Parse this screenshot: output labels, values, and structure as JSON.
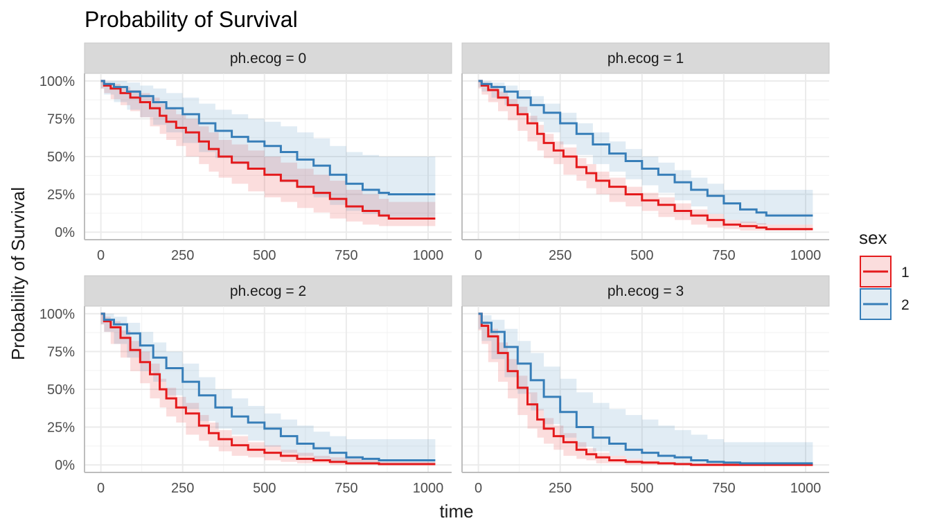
{
  "chart_data": {
    "type": "line",
    "subtype": "step (Kaplan-Meier survival curves with confidence bands)",
    "title": "Probability of Survival",
    "xlabel": "time",
    "ylabel": "Probability of Survival",
    "xlim": [
      0,
      1022
    ],
    "ylim": [
      0,
      1
    ],
    "x_ticks": [
      0,
      250,
      500,
      750,
      1000
    ],
    "x_tick_labels": [
      "0",
      "250",
      "500",
      "750",
      "1000"
    ],
    "y_ticks": [
      0,
      0.25,
      0.5,
      0.75,
      1
    ],
    "y_tick_labels": [
      "0%",
      "25%",
      "50%",
      "75%",
      "100%"
    ],
    "grid": true,
    "legend": {
      "title": "sex",
      "position": "right",
      "entries": [
        "1",
        "2"
      ]
    },
    "colors": {
      "1": "#e41a1c",
      "2": "#377eb8",
      "strip_fill": "#d9d9d9",
      "grid": "#ebebeb"
    },
    "panels": [
      {
        "label": "ph.ecog = 0",
        "series": [
          {
            "name": "1",
            "x": [
              0,
              10,
              30,
              60,
              90,
              120,
              150,
              180,
              200,
              230,
              260,
              300,
              330,
              360,
              400,
              450,
              500,
              550,
              600,
              650,
              700,
              750,
              800,
              850,
              880,
              1022
            ],
            "y": [
              1.0,
              0.97,
              0.95,
              0.92,
              0.89,
              0.86,
              0.82,
              0.77,
              0.73,
              0.69,
              0.66,
              0.6,
              0.55,
              0.5,
              0.46,
              0.42,
              0.38,
              0.34,
              0.3,
              0.26,
              0.22,
              0.17,
              0.14,
              0.11,
              0.09,
              0.09
            ],
            "lower": [
              1.0,
              0.95,
              0.92,
              0.88,
              0.84,
              0.8,
              0.76,
              0.7,
              0.65,
              0.61,
              0.57,
              0.5,
              0.45,
              0.4,
              0.36,
              0.32,
              0.27,
              0.23,
              0.2,
              0.16,
              0.13,
              0.09,
              0.07,
              0.05,
              0.04,
              0.04
            ],
            "upper": [
              1.0,
              0.99,
              0.98,
              0.96,
              0.94,
              0.92,
              0.89,
              0.85,
              0.82,
              0.78,
              0.75,
              0.7,
              0.66,
              0.61,
              0.58,
              0.54,
              0.5,
              0.46,
              0.42,
              0.38,
              0.34,
              0.28,
              0.25,
              0.22,
              0.2,
              0.2
            ]
          },
          {
            "name": "2",
            "x": [
              0,
              10,
              40,
              80,
              120,
              160,
              200,
              250,
              300,
              350,
              400,
              450,
              500,
              550,
              600,
              650,
              700,
              750,
              800,
              850,
              880,
              1022
            ],
            "y": [
              1.0,
              0.98,
              0.96,
              0.93,
              0.9,
              0.86,
              0.82,
              0.78,
              0.72,
              0.67,
              0.63,
              0.6,
              0.57,
              0.53,
              0.48,
              0.44,
              0.38,
              0.32,
              0.28,
              0.26,
              0.25,
              0.25
            ],
            "lower": [
              1.0,
              0.95,
              0.91,
              0.86,
              0.81,
              0.76,
              0.71,
              0.66,
              0.59,
              0.53,
              0.49,
              0.45,
              0.42,
              0.38,
              0.33,
              0.29,
              0.23,
              0.18,
              0.14,
              0.12,
              0.1,
              0.1
            ],
            "upper": [
              1.0,
              1.0,
              1.0,
              0.99,
              0.97,
              0.95,
              0.92,
              0.89,
              0.85,
              0.81,
              0.78,
              0.75,
              0.73,
              0.7,
              0.66,
              0.62,
              0.57,
              0.53,
              0.51,
              0.5,
              0.5,
              0.5
            ]
          }
        ]
      },
      {
        "label": "ph.ecog = 1",
        "series": [
          {
            "name": "1",
            "x": [
              0,
              10,
              30,
              60,
              90,
              120,
              150,
              180,
              200,
              230,
              260,
              300,
              330,
              360,
              400,
              450,
              500,
              550,
              600,
              650,
              700,
              750,
              800,
              850,
              880,
              1022
            ],
            "y": [
              1.0,
              0.97,
              0.94,
              0.89,
              0.84,
              0.78,
              0.72,
              0.65,
              0.59,
              0.54,
              0.5,
              0.43,
              0.39,
              0.34,
              0.3,
              0.25,
              0.21,
              0.18,
              0.14,
              0.11,
              0.08,
              0.05,
              0.04,
              0.03,
              0.02,
              0.02
            ],
            "lower": [
              1.0,
              0.95,
              0.91,
              0.86,
              0.8,
              0.74,
              0.67,
              0.6,
              0.54,
              0.49,
              0.45,
              0.38,
              0.34,
              0.29,
              0.25,
              0.2,
              0.17,
              0.14,
              0.1,
              0.08,
              0.05,
              0.03,
              0.02,
              0.01,
              0.01,
              0.01
            ],
            "upper": [
              1.0,
              0.99,
              0.97,
              0.93,
              0.88,
              0.83,
              0.77,
              0.71,
              0.65,
              0.6,
              0.56,
              0.49,
              0.45,
              0.4,
              0.36,
              0.3,
              0.26,
              0.23,
              0.19,
              0.15,
              0.12,
              0.08,
              0.07,
              0.06,
              0.05,
              0.05
            ]
          },
          {
            "name": "2",
            "x": [
              0,
              10,
              40,
              80,
              120,
              160,
              200,
              250,
              300,
              350,
              400,
              450,
              500,
              550,
              600,
              650,
              700,
              750,
              800,
              850,
              880,
              1022
            ],
            "y": [
              1.0,
              0.98,
              0.96,
              0.93,
              0.89,
              0.84,
              0.79,
              0.72,
              0.65,
              0.58,
              0.52,
              0.47,
              0.42,
              0.38,
              0.33,
              0.28,
              0.24,
              0.19,
              0.15,
              0.13,
              0.11,
              0.11
            ],
            "lower": [
              1.0,
              0.96,
              0.93,
              0.89,
              0.84,
              0.79,
              0.73,
              0.66,
              0.58,
              0.51,
              0.45,
              0.4,
              0.35,
              0.31,
              0.26,
              0.21,
              0.17,
              0.12,
              0.08,
              0.06,
              0.05,
              0.05
            ],
            "upper": [
              1.0,
              1.0,
              0.99,
              0.97,
              0.94,
              0.9,
              0.85,
              0.79,
              0.72,
              0.66,
              0.6,
              0.55,
              0.5,
              0.46,
              0.41,
              0.36,
              0.32,
              0.28,
              0.28,
              0.28,
              0.28,
              0.28
            ]
          }
        ]
      },
      {
        "label": "ph.ecog = 2",
        "series": [
          {
            "name": "1",
            "x": [
              0,
              10,
              30,
              60,
              90,
              120,
              150,
              180,
              200,
              230,
              260,
              300,
              330,
              360,
              400,
              450,
              500,
              550,
              600,
              650,
              700,
              750,
              800,
              850,
              880,
              1022
            ],
            "y": [
              1.0,
              0.95,
              0.91,
              0.84,
              0.76,
              0.68,
              0.6,
              0.5,
              0.44,
              0.38,
              0.34,
              0.26,
              0.21,
              0.17,
              0.13,
              0.1,
              0.08,
              0.06,
              0.04,
              0.03,
              0.02,
              0.01,
              0.01,
              0.005,
              0.005,
              0.005
            ],
            "lower": [
              1.0,
              0.93,
              0.88,
              0.8,
              0.71,
              0.62,
              0.54,
              0.44,
              0.38,
              0.32,
              0.28,
              0.2,
              0.16,
              0.12,
              0.09,
              0.06,
              0.05,
              0.03,
              0.02,
              0.01,
              0.01,
              0.0,
              0.0,
              0.0,
              0.0,
              0.0
            ],
            "upper": [
              1.0,
              0.98,
              0.95,
              0.89,
              0.82,
              0.75,
              0.67,
              0.57,
              0.51,
              0.45,
              0.41,
              0.33,
              0.28,
              0.23,
              0.19,
              0.15,
              0.13,
              0.1,
              0.08,
              0.06,
              0.05,
              0.04,
              0.03,
              0.02,
              0.02,
              0.02
            ]
          },
          {
            "name": "2",
            "x": [
              0,
              10,
              40,
              80,
              120,
              160,
              200,
              250,
              300,
              350,
              400,
              450,
              500,
              550,
              600,
              650,
              700,
              750,
              800,
              850,
              880,
              1022
            ],
            "y": [
              1.0,
              0.96,
              0.93,
              0.87,
              0.79,
              0.71,
              0.64,
              0.55,
              0.46,
              0.38,
              0.32,
              0.28,
              0.24,
              0.19,
              0.14,
              0.11,
              0.08,
              0.05,
              0.04,
              0.03,
              0.03,
              0.03
            ],
            "lower": [
              1.0,
              0.93,
              0.88,
              0.8,
              0.71,
              0.62,
              0.55,
              0.46,
              0.37,
              0.29,
              0.24,
              0.2,
              0.16,
              0.12,
              0.08,
              0.06,
              0.04,
              0.02,
              0.01,
              0.01,
              0.0,
              0.0
            ],
            "upper": [
              1.0,
              1.0,
              0.98,
              0.94,
              0.88,
              0.81,
              0.75,
              0.67,
              0.58,
              0.5,
              0.44,
              0.39,
              0.34,
              0.3,
              0.26,
              0.22,
              0.19,
              0.17,
              0.17,
              0.17,
              0.17,
              0.17
            ]
          }
        ]
      },
      {
        "label": "ph.ecog = 3",
        "series": [
          {
            "name": "1",
            "x": [
              0,
              10,
              30,
              60,
              90,
              120,
              150,
              180,
              200,
              230,
              260,
              300,
              330,
              360,
              400,
              450,
              500,
              550,
              600,
              650,
              700,
              750,
              800,
              850,
              880,
              1022
            ],
            "y": [
              1.0,
              0.92,
              0.85,
              0.74,
              0.62,
              0.51,
              0.4,
              0.3,
              0.24,
              0.19,
              0.15,
              0.1,
              0.07,
              0.05,
              0.03,
              0.02,
              0.015,
              0.01,
              0.005,
              0.0,
              0.0,
              0.0,
              0.0,
              0.0,
              0.0,
              0.0
            ],
            "lower": [
              1.0,
              0.89,
              0.8,
              0.68,
              0.55,
              0.44,
              0.33,
              0.24,
              0.18,
              0.14,
              0.1,
              0.06,
              0.04,
              0.03,
              0.01,
              0.01,
              0.0,
              0.0,
              0.0,
              0.0,
              0.0,
              0.0,
              0.0,
              0.0,
              0.0,
              0.0
            ],
            "upper": [
              1.0,
              0.95,
              0.9,
              0.81,
              0.7,
              0.59,
              0.48,
              0.37,
              0.31,
              0.26,
              0.21,
              0.15,
              0.11,
              0.08,
              0.06,
              0.04,
              0.03,
              0.02,
              0.015,
              0.01,
              0.01,
              0.01,
              0.01,
              0.01,
              0.01,
              0.01
            ]
          },
          {
            "name": "2",
            "x": [
              0,
              10,
              40,
              80,
              120,
              160,
              200,
              250,
              300,
              350,
              400,
              450,
              500,
              550,
              600,
              650,
              700,
              750,
              800,
              850,
              880,
              1022
            ],
            "y": [
              1.0,
              0.94,
              0.88,
              0.78,
              0.67,
              0.56,
              0.45,
              0.35,
              0.25,
              0.18,
              0.14,
              0.1,
              0.08,
              0.06,
              0.05,
              0.03,
              0.02,
              0.015,
              0.01,
              0.01,
              0.01,
              0.01
            ],
            "lower": [
              1.0,
              0.9,
              0.82,
              0.7,
              0.58,
              0.47,
              0.36,
              0.27,
              0.18,
              0.12,
              0.09,
              0.06,
              0.04,
              0.03,
              0.02,
              0.01,
              0.0,
              0.0,
              0.0,
              0.0,
              0.0,
              0.0
            ],
            "upper": [
              1.0,
              0.99,
              0.96,
              0.9,
              0.82,
              0.74,
              0.65,
              0.57,
              0.48,
              0.41,
              0.37,
              0.33,
              0.3,
              0.26,
              0.23,
              0.2,
              0.17,
              0.15,
              0.15,
              0.15,
              0.15,
              0.15
            ]
          }
        ]
      }
    ]
  }
}
